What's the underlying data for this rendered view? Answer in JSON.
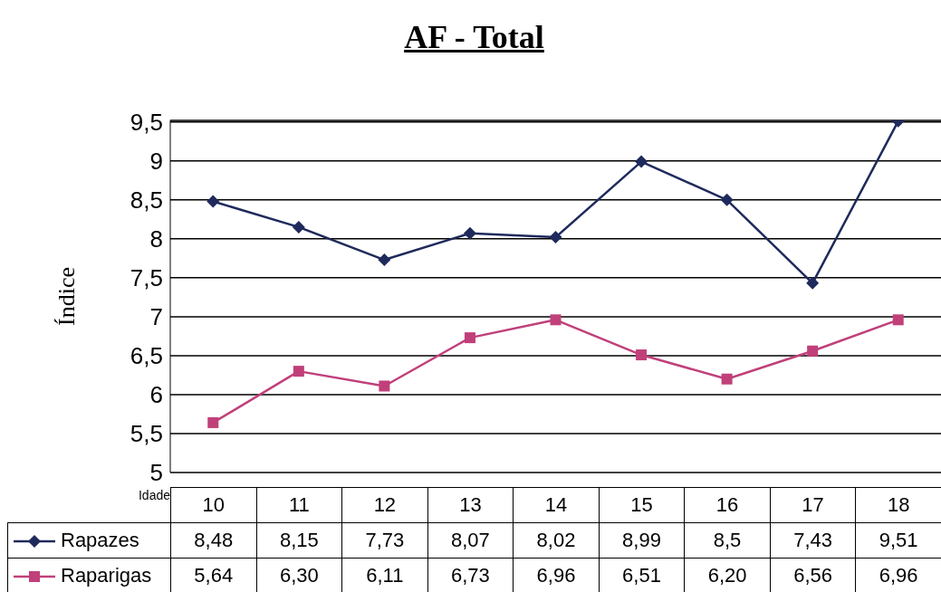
{
  "chart_data": {
    "type": "line",
    "title": "AF - Total",
    "ylabel": "Índice",
    "xlabel": "Idade",
    "categories": [
      "10",
      "11",
      "12",
      "13",
      "14",
      "15",
      "16",
      "17",
      "18"
    ],
    "series": [
      {
        "name": "Rapazes",
        "color": "#1f2a5c",
        "marker": "diamond",
        "values": [
          8.48,
          8.15,
          7.73,
          8.07,
          8.02,
          8.99,
          8.5,
          7.43,
          9.51
        ],
        "value_labels": [
          "8,48",
          "8,15",
          "7,73",
          "8,07",
          "8,02",
          "8,99",
          "8,5",
          "7,43",
          "9,51"
        ]
      },
      {
        "name": "Raparigas",
        "color": "#c0407a",
        "marker": "square",
        "values": [
          5.64,
          6.3,
          6.11,
          6.73,
          6.96,
          6.51,
          6.2,
          6.56,
          6.96
        ],
        "value_labels": [
          "5,64",
          "6,30",
          "6,11",
          "6,73",
          "6,96",
          "6,51",
          "6,20",
          "6,56",
          "6,96"
        ]
      }
    ],
    "ylim": [
      5,
      9.52
    ],
    "yticks": [
      5,
      {
        "value": 5.5,
        "label": "5,5"
      },
      6,
      {
        "value": 6.5,
        "label": "6,5"
      },
      7,
      {
        "value": 7.5,
        "label": "7,5"
      },
      8,
      {
        "value": 8.5,
        "label": "8,5"
      },
      9,
      {
        "value": 9.5,
        "label": "9,5"
      }
    ],
    "grid": "y",
    "legend": "bottom",
    "line_style": "solid",
    "data_labels": true
  }
}
